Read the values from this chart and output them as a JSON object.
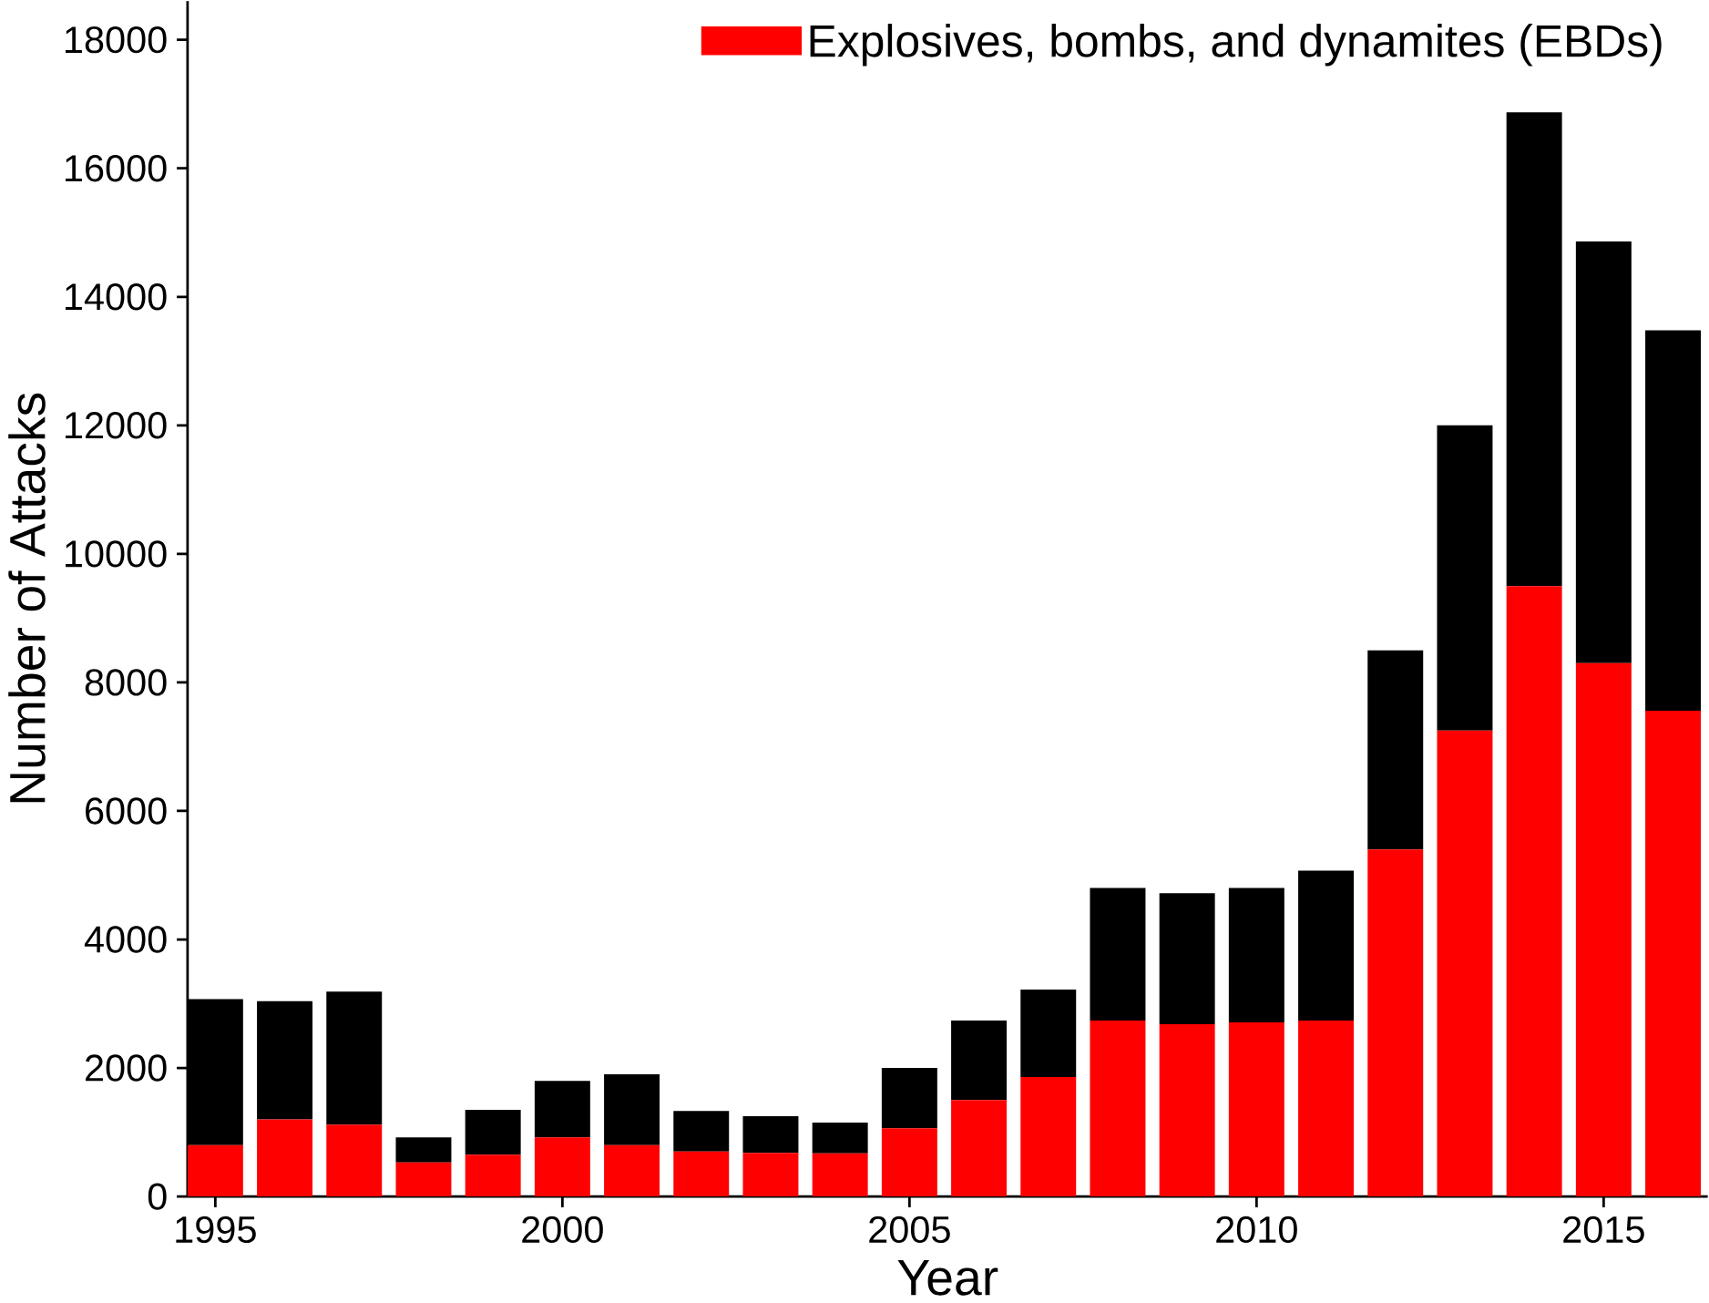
{
  "chart_data": {
    "type": "bar",
    "stacked": true,
    "xlabel": "Year",
    "ylabel": "Number of Attacks",
    "x": [
      1995,
      1996,
      1997,
      1998,
      1999,
      2000,
      2001,
      2002,
      2003,
      2004,
      2005,
      2006,
      2007,
      2008,
      2009,
      2010,
      2011,
      2012,
      2013,
      2014,
      2015,
      2016
    ],
    "series": [
      {
        "name": "Explosives, bombs, and dynamites (EBDs)",
        "color": "#ff0000",
        "values": [
          800,
          1200,
          1120,
          530,
          650,
          920,
          800,
          700,
          680,
          670,
          1060,
          1500,
          1860,
          2740,
          2680,
          2710,
          2740,
          5400,
          7250,
          9500,
          8300,
          7560
        ]
      },
      {
        "color": "#000000",
        "values": [
          2270,
          1840,
          2070,
          390,
          700,
          880,
          1100,
          630,
          570,
          480,
          940,
          1240,
          1360,
          2060,
          2040,
          2090,
          2330,
          3100,
          4750,
          7370,
          6560,
          5920
        ]
      }
    ],
    "xlim": [
      1994.6,
      2016.5
    ],
    "xticks": [
      1995,
      2000,
      2005,
      2010,
      2015
    ],
    "ylim": [
      0,
      18600
    ],
    "yticks": [
      0,
      2000,
      4000,
      6000,
      8000,
      10000,
      12000,
      14000,
      16000,
      18000
    ],
    "grid": false,
    "legend": "top right"
  }
}
